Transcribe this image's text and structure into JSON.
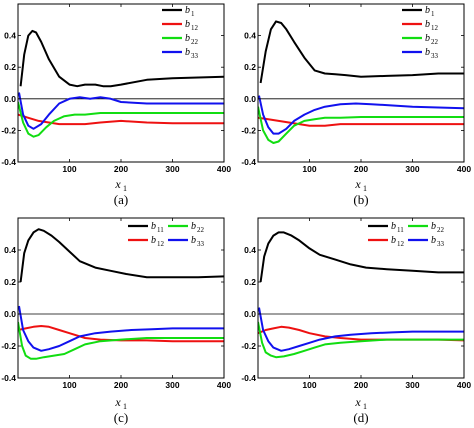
{
  "chart_data": [
    {
      "type": "line",
      "caption": "(a)",
      "xlabel": "x",
      "xlabel_sub": "1",
      "xlim": [
        0,
        400
      ],
      "ylim": [
        -0.4,
        0.6
      ],
      "xticks": [
        100,
        200,
        300,
        400
      ],
      "yticks": [
        -0.4,
        -0.2,
        0.0,
        0.2,
        0.4
      ],
      "zero_line": true,
      "legend_layout": "column",
      "series": [
        {
          "name": "b",
          "sub": "1",
          "color": "#000000",
          "x": [
            5,
            12,
            20,
            28,
            35,
            45,
            60,
            80,
            100,
            115,
            130,
            150,
            165,
            180,
            200,
            250,
            300,
            350,
            400
          ],
          "y": [
            0.08,
            0.28,
            0.4,
            0.43,
            0.42,
            0.36,
            0.25,
            0.14,
            0.09,
            0.08,
            0.09,
            0.09,
            0.08,
            0.08,
            0.09,
            0.12,
            0.13,
            0.135,
            0.14
          ]
        },
        {
          "name": "b",
          "sub": "12",
          "color": "#ee1111",
          "x": [
            0,
            20,
            40,
            60,
            80,
            100,
            130,
            160,
            200,
            250,
            300,
            350,
            400
          ],
          "y": [
            -0.1,
            -0.12,
            -0.14,
            -0.15,
            -0.16,
            -0.16,
            -0.16,
            -0.15,
            -0.14,
            -0.15,
            -0.155,
            -0.155,
            -0.155
          ]
        },
        {
          "name": "b",
          "sub": "22",
          "color": "#11dd11",
          "x": [
            0,
            10,
            20,
            30,
            40,
            55,
            70,
            90,
            110,
            130,
            160,
            200,
            250,
            300,
            350,
            400
          ],
          "y": [
            -0.02,
            -0.15,
            -0.22,
            -0.24,
            -0.23,
            -0.18,
            -0.14,
            -0.11,
            -0.1,
            -0.1,
            -0.09,
            -0.09,
            -0.09,
            -0.09,
            -0.09,
            -0.09
          ]
        },
        {
          "name": "b",
          "sub": "33",
          "color": "#1111ee",
          "x": [
            2,
            10,
            20,
            30,
            45,
            60,
            80,
            100,
            120,
            140,
            160,
            180,
            200,
            250,
            300,
            350,
            400
          ],
          "y": [
            0.04,
            -0.1,
            -0.17,
            -0.19,
            -0.16,
            -0.1,
            -0.03,
            0.0,
            0.01,
            0.0,
            0.01,
            0.0,
            -0.02,
            -0.03,
            -0.03,
            -0.03,
            -0.03
          ]
        }
      ]
    },
    {
      "type": "line",
      "caption": "(b)",
      "xlabel": "x",
      "xlabel_sub": "1",
      "xlim": [
        0,
        400
      ],
      "ylim": [
        -0.4,
        0.6
      ],
      "xticks": [
        100,
        200,
        300,
        400
      ],
      "yticks": [
        -0.4,
        -0.2,
        0.0,
        0.2,
        0.4
      ],
      "zero_line": true,
      "legend_layout": "column",
      "series": [
        {
          "name": "b",
          "sub": "1",
          "color": "#000000",
          "x": [
            5,
            15,
            25,
            35,
            45,
            55,
            70,
            90,
            110,
            130,
            150,
            170,
            200,
            250,
            300,
            350,
            400
          ],
          "y": [
            0.1,
            0.3,
            0.44,
            0.49,
            0.48,
            0.44,
            0.36,
            0.26,
            0.18,
            0.16,
            0.155,
            0.15,
            0.14,
            0.145,
            0.15,
            0.16,
            0.16
          ]
        },
        {
          "name": "b",
          "sub": "12",
          "color": "#ee1111",
          "x": [
            0,
            20,
            40,
            60,
            80,
            100,
            130,
            160,
            200,
            250,
            300,
            350,
            400
          ],
          "y": [
            -0.12,
            -0.13,
            -0.14,
            -0.15,
            -0.16,
            -0.17,
            -0.17,
            -0.16,
            -0.16,
            -0.16,
            -0.16,
            -0.16,
            -0.16
          ]
        },
        {
          "name": "b",
          "sub": "22",
          "color": "#11dd11",
          "x": [
            0,
            10,
            20,
            30,
            40,
            55,
            70,
            90,
            110,
            130,
            160,
            200,
            250,
            300,
            350,
            400
          ],
          "y": [
            -0.05,
            -0.2,
            -0.26,
            -0.28,
            -0.27,
            -0.22,
            -0.17,
            -0.14,
            -0.13,
            -0.12,
            -0.12,
            -0.115,
            -0.115,
            -0.115,
            -0.115,
            -0.115
          ]
        },
        {
          "name": "b",
          "sub": "33",
          "color": "#1111ee",
          "x": [
            2,
            10,
            20,
            30,
            40,
            55,
            70,
            90,
            110,
            130,
            160,
            190,
            220,
            250,
            300,
            350,
            400
          ],
          "y": [
            0.02,
            -0.1,
            -0.18,
            -0.22,
            -0.22,
            -0.19,
            -0.14,
            -0.1,
            -0.07,
            -0.05,
            -0.035,
            -0.03,
            -0.035,
            -0.04,
            -0.05,
            -0.055,
            -0.06
          ]
        }
      ]
    },
    {
      "type": "line",
      "caption": "(c)",
      "xlabel": "x",
      "xlabel_sub": "1",
      "xlim": [
        0,
        400
      ],
      "ylim": [
        -0.4,
        0.6
      ],
      "xticks": [
        100,
        200,
        300,
        400
      ],
      "yticks": [
        -0.4,
        -0.2,
        0.0,
        0.2,
        0.4
      ],
      "zero_line": true,
      "legend_layout": "grid",
      "series": [
        {
          "name": "b",
          "sub": "11",
          "color": "#000000",
          "x": [
            5,
            12,
            20,
            30,
            40,
            50,
            65,
            80,
            100,
            120,
            150,
            180,
            210,
            250,
            300,
            350,
            400
          ],
          "y": [
            0.2,
            0.38,
            0.46,
            0.51,
            0.53,
            0.52,
            0.49,
            0.45,
            0.39,
            0.33,
            0.29,
            0.27,
            0.25,
            0.23,
            0.23,
            0.23,
            0.235
          ]
        },
        {
          "name": "b",
          "sub": "12",
          "color": "#ee1111",
          "x": [
            0,
            15,
            30,
            45,
            60,
            80,
            100,
            130,
            160,
            200,
            250,
            300,
            350,
            400
          ],
          "y": [
            -0.1,
            -0.09,
            -0.08,
            -0.075,
            -0.08,
            -0.1,
            -0.12,
            -0.15,
            -0.16,
            -0.165,
            -0.165,
            -0.17,
            -0.17,
            -0.17
          ]
        },
        {
          "name": "b",
          "sub": "22",
          "color": "#11dd11",
          "x": [
            0,
            8,
            15,
            25,
            35,
            50,
            70,
            90,
            110,
            130,
            160,
            200,
            250,
            300,
            350,
            400
          ],
          "y": [
            -0.05,
            -0.2,
            -0.26,
            -0.28,
            -0.28,
            -0.27,
            -0.26,
            -0.25,
            -0.22,
            -0.19,
            -0.17,
            -0.16,
            -0.15,
            -0.15,
            -0.15,
            -0.15
          ]
        },
        {
          "name": "b",
          "sub": "33",
          "color": "#1111ee",
          "x": [
            2,
            10,
            20,
            30,
            45,
            60,
            80,
            100,
            120,
            150,
            180,
            220,
            260,
            300,
            350,
            400
          ],
          "y": [
            0.05,
            -0.1,
            -0.17,
            -0.21,
            -0.23,
            -0.22,
            -0.2,
            -0.17,
            -0.14,
            -0.12,
            -0.11,
            -0.1,
            -0.095,
            -0.09,
            -0.09,
            -0.09
          ]
        }
      ]
    },
    {
      "type": "line",
      "caption": "(d)",
      "xlabel": "x",
      "xlabel_sub": "1",
      "xlim": [
        0,
        400
      ],
      "ylim": [
        -0.4,
        0.6
      ],
      "xticks": [
        100,
        200,
        300,
        400
      ],
      "yticks": [
        -0.4,
        -0.2,
        0.0,
        0.2,
        0.4
      ],
      "zero_line": true,
      "legend_layout": "grid",
      "series": [
        {
          "name": "b",
          "sub": "11",
          "color": "#000000",
          "x": [
            5,
            12,
            20,
            30,
            40,
            50,
            65,
            80,
            100,
            120,
            150,
            180,
            210,
            250,
            300,
            350,
            400
          ],
          "y": [
            0.2,
            0.36,
            0.44,
            0.49,
            0.51,
            0.51,
            0.49,
            0.46,
            0.41,
            0.37,
            0.34,
            0.31,
            0.29,
            0.28,
            0.27,
            0.26,
            0.26
          ]
        },
        {
          "name": "b",
          "sub": "12",
          "color": "#ee1111",
          "x": [
            0,
            15,
            30,
            45,
            60,
            80,
            100,
            130,
            160,
            200,
            250,
            300,
            350,
            400
          ],
          "y": [
            -0.12,
            -0.1,
            -0.09,
            -0.08,
            -0.085,
            -0.1,
            -0.12,
            -0.14,
            -0.15,
            -0.16,
            -0.16,
            -0.16,
            -0.16,
            -0.165
          ]
        },
        {
          "name": "b",
          "sub": "22",
          "color": "#11dd11",
          "x": [
            0,
            8,
            15,
            25,
            35,
            50,
            70,
            90,
            110,
            130,
            160,
            200,
            250,
            300,
            350,
            400
          ],
          "y": [
            -0.05,
            -0.18,
            -0.24,
            -0.26,
            -0.27,
            -0.265,
            -0.25,
            -0.23,
            -0.21,
            -0.19,
            -0.18,
            -0.17,
            -0.16,
            -0.16,
            -0.16,
            -0.16
          ]
        },
        {
          "name": "b",
          "sub": "33",
          "color": "#1111ee",
          "x": [
            2,
            10,
            20,
            30,
            45,
            60,
            80,
            100,
            120,
            150,
            180,
            220,
            260,
            300,
            350,
            400
          ],
          "y": [
            0.04,
            -0.1,
            -0.17,
            -0.21,
            -0.23,
            -0.22,
            -0.2,
            -0.18,
            -0.16,
            -0.14,
            -0.13,
            -0.12,
            -0.115,
            -0.11,
            -0.11,
            -0.11
          ]
        }
      ]
    }
  ]
}
